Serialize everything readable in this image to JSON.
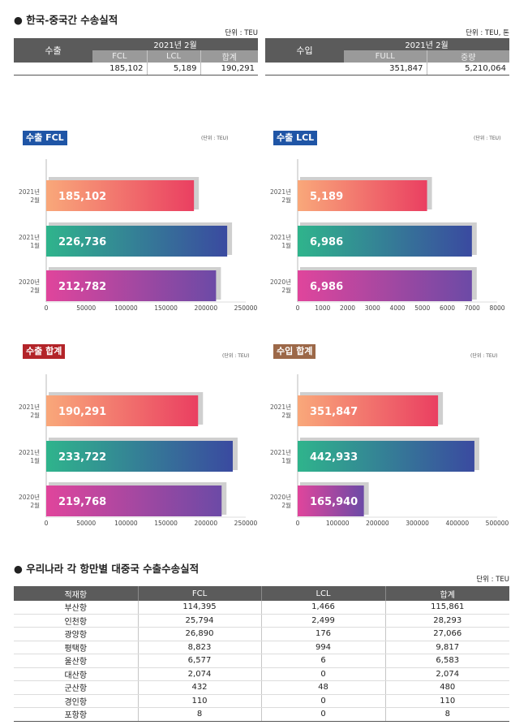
{
  "section1": {
    "title": "● 한국-중국간 수송실적",
    "export_table": {
      "unit": "단위 : TEU",
      "row_label": "수출",
      "period": "2021년 2월",
      "columns": [
        "FCL",
        "LCL",
        "합계"
      ],
      "values": [
        "185,102",
        "5,189",
        "190,291"
      ]
    },
    "import_table": {
      "unit": "단위 : TEU, 톤",
      "row_label": "수입",
      "period": "2021년 2월",
      "columns": [
        "FULL",
        "중량"
      ],
      "values": [
        "351,847",
        "5,210,064"
      ]
    }
  },
  "colors": {
    "bar_top_from": "#f9a87a",
    "bar_top_to": "#ea3f61",
    "bar_mid_from": "#2fb48c",
    "bar_mid_to": "#3a4aa0",
    "bar_bot_from": "#e0459c",
    "bar_bot_to": "#6c4aa6",
    "badge_blue": "#1f55a6",
    "badge_red": "#b32429",
    "badge_brown": "#9c6848"
  },
  "chart_data": [
    {
      "type": "bar",
      "title": "수출 FCL",
      "unit": "(단위 : TEU)",
      "categories": [
        "2021년\n2월",
        "2021년\n1월",
        "2020년\n2월"
      ],
      "values": [
        185102,
        226736,
        212782
      ],
      "value_labels": [
        "185,102",
        "226,736",
        "212,782"
      ],
      "xlim": [
        0,
        250000
      ],
      "ticks": [
        0,
        50000,
        100000,
        150000,
        200000,
        250000
      ],
      "tick_labels": [
        "0",
        "50000",
        "100000",
        "150000",
        "200000",
        "250000"
      ]
    },
    {
      "type": "bar",
      "title": "수출 LCL",
      "unit": "(단위 : TEU)",
      "categories": [
        "2021년\n2월",
        "2021년\n1월",
        "2020년\n2월"
      ],
      "values": [
        5189,
        6986,
        6986
      ],
      "value_labels": [
        "5,189",
        "6,986",
        "6,986"
      ],
      "xlim": [
        0,
        8000
      ],
      "ticks": [
        0,
        1000,
        2000,
        3000,
        4000,
        5000,
        6000,
        7000,
        8000
      ],
      "tick_labels": [
        "0",
        "1000",
        "2000",
        "3000",
        "4000",
        "5000",
        "6000",
        "7000",
        "8000"
      ]
    },
    {
      "type": "bar",
      "title": "수출 합계",
      "unit": "(단위 : TEU)",
      "categories": [
        "2021년\n2월",
        "2021년\n1월",
        "2020년\n2월"
      ],
      "values": [
        190291,
        233722,
        219768
      ],
      "value_labels": [
        "190,291",
        "233,722",
        "219,768"
      ],
      "xlim": [
        0,
        250000
      ],
      "ticks": [
        0,
        50000,
        100000,
        150000,
        200000,
        250000
      ],
      "tick_labels": [
        "0",
        "50000",
        "100000",
        "150000",
        "200000",
        "250000"
      ]
    },
    {
      "type": "bar",
      "title": "수입 합계",
      "unit": "(단위 : TEU)",
      "categories": [
        "2021년\n2월",
        "2021년\n1월",
        "2020년\n2월"
      ],
      "values": [
        351847,
        442933,
        165940
      ],
      "value_labels": [
        "351,847",
        "442,933",
        "165,940"
      ],
      "xlim": [
        0,
        500000
      ],
      "ticks": [
        0,
        100000,
        200000,
        300000,
        400000,
        500000
      ],
      "tick_labels": [
        "0",
        "100000",
        "200000",
        "300000",
        "400000",
        "500000"
      ]
    }
  ],
  "section2": {
    "title": "● 우리나라 각 항만별 대중국 수출수송실적",
    "unit": "단위 : TEU",
    "columns": [
      "적재항",
      "FCL",
      "LCL",
      "합계"
    ],
    "rows": [
      [
        "부산항",
        "114,395",
        "1,466",
        "115,861"
      ],
      [
        "인천항",
        "25,794",
        "2,499",
        "28,293"
      ],
      [
        "광양항",
        "26,890",
        "176",
        "27,066"
      ],
      [
        "평택항",
        "8,823",
        "994",
        "9,817"
      ],
      [
        "울산항",
        "6,577",
        "6",
        "6,583"
      ],
      [
        "대산항",
        "2,074",
        "0",
        "2,074"
      ],
      [
        "군산항",
        "432",
        "48",
        "480"
      ],
      [
        "경인항",
        "110",
        "0",
        "110"
      ],
      [
        "포항항",
        "8",
        "0",
        "8"
      ]
    ]
  }
}
